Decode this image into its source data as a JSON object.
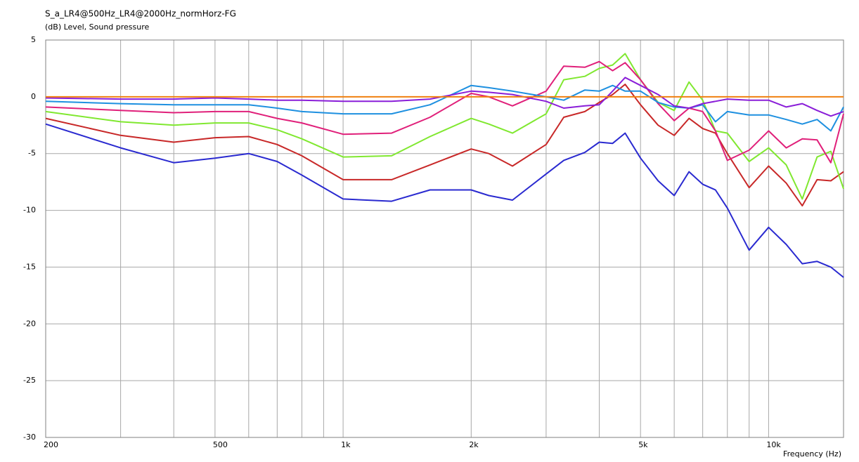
{
  "chart_data": {
    "type": "line",
    "title": "S_a_LR4@500Hz_LR4@2000Hz_normHorz-FG",
    "subtitle": "(dB)  Level, Sound pressure",
    "x_label": "Frequency  (Hz)",
    "log_x": true,
    "grid": true,
    "xlim": [
      200,
      15000
    ],
    "ylim": [
      -30,
      5
    ],
    "yticks": [
      5,
      0,
      -5,
      -10,
      -15,
      -20,
      -25,
      -30
    ],
    "xticks": [
      200,
      500,
      {
        "value": 1000,
        "label": "1k"
      },
      {
        "value": 2000,
        "label": "2k"
      },
      {
        "value": 5000,
        "label": "5k"
      },
      {
        "value": 10000,
        "label": "10k"
      }
    ],
    "xminor": [
      300,
      400,
      600,
      700,
      800,
      900,
      3000,
      4000,
      6000,
      7000,
      8000,
      9000
    ],
    "x": [
      200,
      300,
      400,
      500,
      600,
      700,
      800,
      1000,
      1300,
      1600,
      2000,
      2200,
      2500,
      3000,
      3300,
      3700,
      4000,
      4300,
      4600,
      5000,
      5500,
      6000,
      6500,
      7000,
      7500,
      8000,
      9000,
      10000,
      11000,
      12000,
      13000,
      14000,
      15000
    ],
    "series": [
      {
        "color": "#2a2ad0",
        "values": [
          -2.4,
          -4.5,
          -5.8,
          -5.4,
          -5.0,
          -5.7,
          -6.9,
          -9.0,
          -9.2,
          -8.2,
          -8.2,
          -8.7,
          -9.1,
          -6.8,
          -5.6,
          -4.9,
          -4.0,
          -4.1,
          -3.2,
          -5.4,
          -7.4,
          -8.7,
          -6.6,
          -7.7,
          -8.2,
          -9.8,
          -13.5,
          -11.5,
          -13.0,
          -14.7,
          -14.5,
          -15.0,
          -15.9
        ]
      },
      {
        "color": "#c82828",
        "values": [
          -1.9,
          -3.4,
          -4.0,
          -3.6,
          -3.5,
          -4.2,
          -5.2,
          -7.3,
          -7.3,
          -6.0,
          -4.6,
          -5.0,
          -6.1,
          -4.2,
          -1.8,
          -1.3,
          -0.5,
          0.2,
          1.1,
          -0.7,
          -2.5,
          -3.4,
          -1.9,
          -2.8,
          -3.2,
          -5.0,
          -8.0,
          -6.1,
          -7.6,
          -9.6,
          -7.3,
          -7.4,
          -6.6
        ]
      },
      {
        "color": "#80e830",
        "values": [
          -1.3,
          -2.2,
          -2.5,
          -2.3,
          -2.3,
          -2.9,
          -3.7,
          -5.3,
          -5.2,
          -3.5,
          -1.9,
          -2.4,
          -3.2,
          -1.5,
          1.5,
          1.8,
          2.5,
          2.8,
          3.8,
          1.5,
          -0.5,
          -1.2,
          1.3,
          -0.3,
          -3.0,
          -3.2,
          -5.7,
          -4.5,
          -6.0,
          -9.0,
          -5.3,
          -4.8,
          -8.1
        ]
      },
      {
        "color": "#e0207a",
        "values": [
          -0.9,
          -1.2,
          -1.4,
          -1.3,
          -1.3,
          -1.9,
          -2.3,
          -3.3,
          -3.2,
          -1.8,
          0.3,
          0.0,
          -0.8,
          0.5,
          2.7,
          2.6,
          3.1,
          2.3,
          3.0,
          1.5,
          -0.6,
          -2.1,
          -1.0,
          -1.3,
          -3.0,
          -5.6,
          -4.7,
          -3.0,
          -4.5,
          -3.7,
          -3.8,
          -5.8,
          -1.5
        ]
      },
      {
        "color": "#1e90e0",
        "values": [
          -0.4,
          -0.6,
          -0.7,
          -0.7,
          -0.7,
          -1.0,
          -1.3,
          -1.5,
          -1.5,
          -0.7,
          1.0,
          0.8,
          0.5,
          0.0,
          -0.3,
          0.6,
          0.5,
          1.0,
          0.5,
          0.5,
          -0.5,
          -0.9,
          -1.0,
          -0.7,
          -2.2,
          -1.3,
          -1.6,
          -1.6,
          -2.0,
          -2.4,
          -2.0,
          -3.0,
          -0.9
        ]
      },
      {
        "color": "#8a1ed8",
        "values": [
          -0.1,
          -0.2,
          -0.2,
          -0.1,
          -0.2,
          -0.3,
          -0.3,
          -0.4,
          -0.4,
          -0.2,
          0.5,
          0.4,
          0.2,
          -0.4,
          -1.0,
          -0.8,
          -0.7,
          0.5,
          1.7,
          1.0,
          0.2,
          -0.8,
          -1.0,
          -0.6,
          -0.4,
          -0.2,
          -0.3,
          -0.3,
          -0.9,
          -0.6,
          -1.2,
          -1.7,
          -1.3
        ]
      },
      {
        "color": "#f08010",
        "values": [
          0,
          0,
          0,
          0,
          0,
          0,
          0,
          0,
          0,
          0,
          0,
          0,
          0,
          0,
          0,
          0,
          0,
          0,
          0,
          0,
          0,
          0,
          0,
          0,
          0,
          0,
          0,
          0,
          0,
          0,
          0,
          0,
          0
        ]
      }
    ]
  }
}
